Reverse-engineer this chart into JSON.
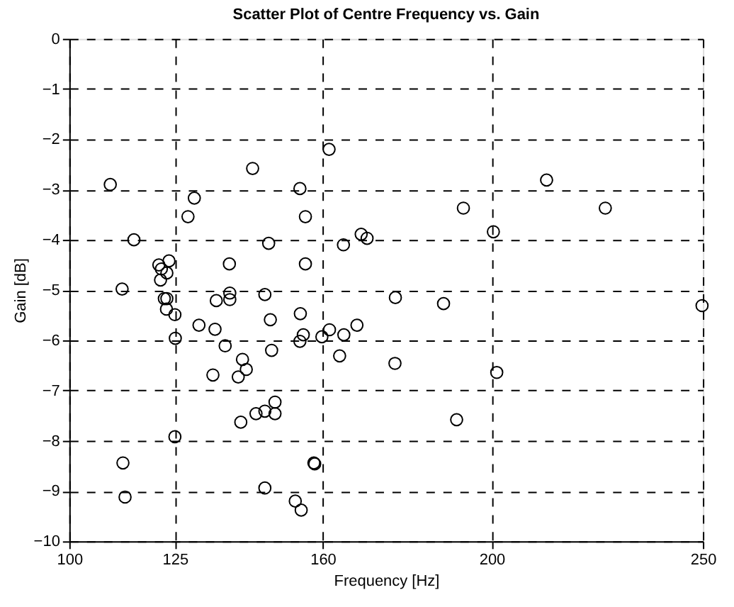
{
  "chart_data": {
    "type": "scatter",
    "title": "Scatter Plot of Centre Frequency vs. Gain",
    "xlabel": "Frequency [Hz]",
    "ylabel": "Gain [dB]",
    "xlim": [
      100,
      250
    ],
    "xticks": [
      100,
      125,
      160,
      200,
      250
    ],
    "ylim": [
      -10,
      0
    ],
    "yticks": [
      -10,
      -9,
      -8,
      -7,
      -6,
      -5,
      -4,
      -3,
      -2,
      -1,
      0
    ],
    "grid": true,
    "marker": "circle",
    "series": [
      {
        "color": "#000000",
        "x": [
          109.7,
          143.4,
          161.5,
          129.6,
          154.6,
          128.1,
          155.9,
          115.3,
          147.2,
          164.9,
          169.1,
          170.5,
          121.2,
          123.6,
          121.8,
          123.1,
          121.6,
          137.9,
          155.9,
          112.5,
          122.5,
          123.1,
          138,
          138,
          134.8,
          146.3,
          177.2,
          125.0,
          147.6,
          154.7,
          123.0,
          130.7,
          134.5,
          125.1,
          136.9,
          155.4,
          154.6,
          159.8,
          161.6,
          165.0,
          168.1,
          164.0,
          177.1,
          147.9,
          141.0,
          141.9,
          140.0,
          134.0,
          148.7,
          144.2,
          146.3,
          148.7,
          140.6,
          125.0,
          112.7,
          157.9,
          158.1,
          113.2,
          146.3,
          153.5,
          154.9,
          213,
          193.3,
          226.9,
          200.4,
          188.6,
          249.8,
          201.2,
          191.7
        ],
        "values": [
          -2.9,
          -2.58,
          -2.2,
          -3.17,
          -2.98,
          -3.54,
          -3.54,
          -4.0,
          -4.07,
          -4.1,
          -3.89,
          -3.97,
          -4.5,
          -4.42,
          -4.58,
          -4.66,
          -4.8,
          -4.48,
          -4.48,
          -4.98,
          -5.17,
          -5.17,
          -5.06,
          -5.19,
          -5.21,
          -5.09,
          -5.15,
          -5.49,
          -5.59,
          -5.47,
          -5.38,
          -5.7,
          -5.78,
          -5.96,
          -6.11,
          -5.89,
          -6.02,
          -5.93,
          -5.79,
          -5.89,
          -5.7,
          -6.31,
          -6.46,
          -6.2,
          -6.38,
          -6.58,
          -6.73,
          -6.69,
          -7.23,
          -7.46,
          -7.41,
          -7.46,
          -7.63,
          -7.92,
          -8.44,
          -8.44,
          -8.46,
          -9.12,
          -8.94,
          -9.2,
          -9.38,
          -2.81,
          -3.37,
          -3.37,
          -3.84,
          -5.27,
          -5.31,
          -6.64,
          -7.58
        ]
      }
    ]
  }
}
